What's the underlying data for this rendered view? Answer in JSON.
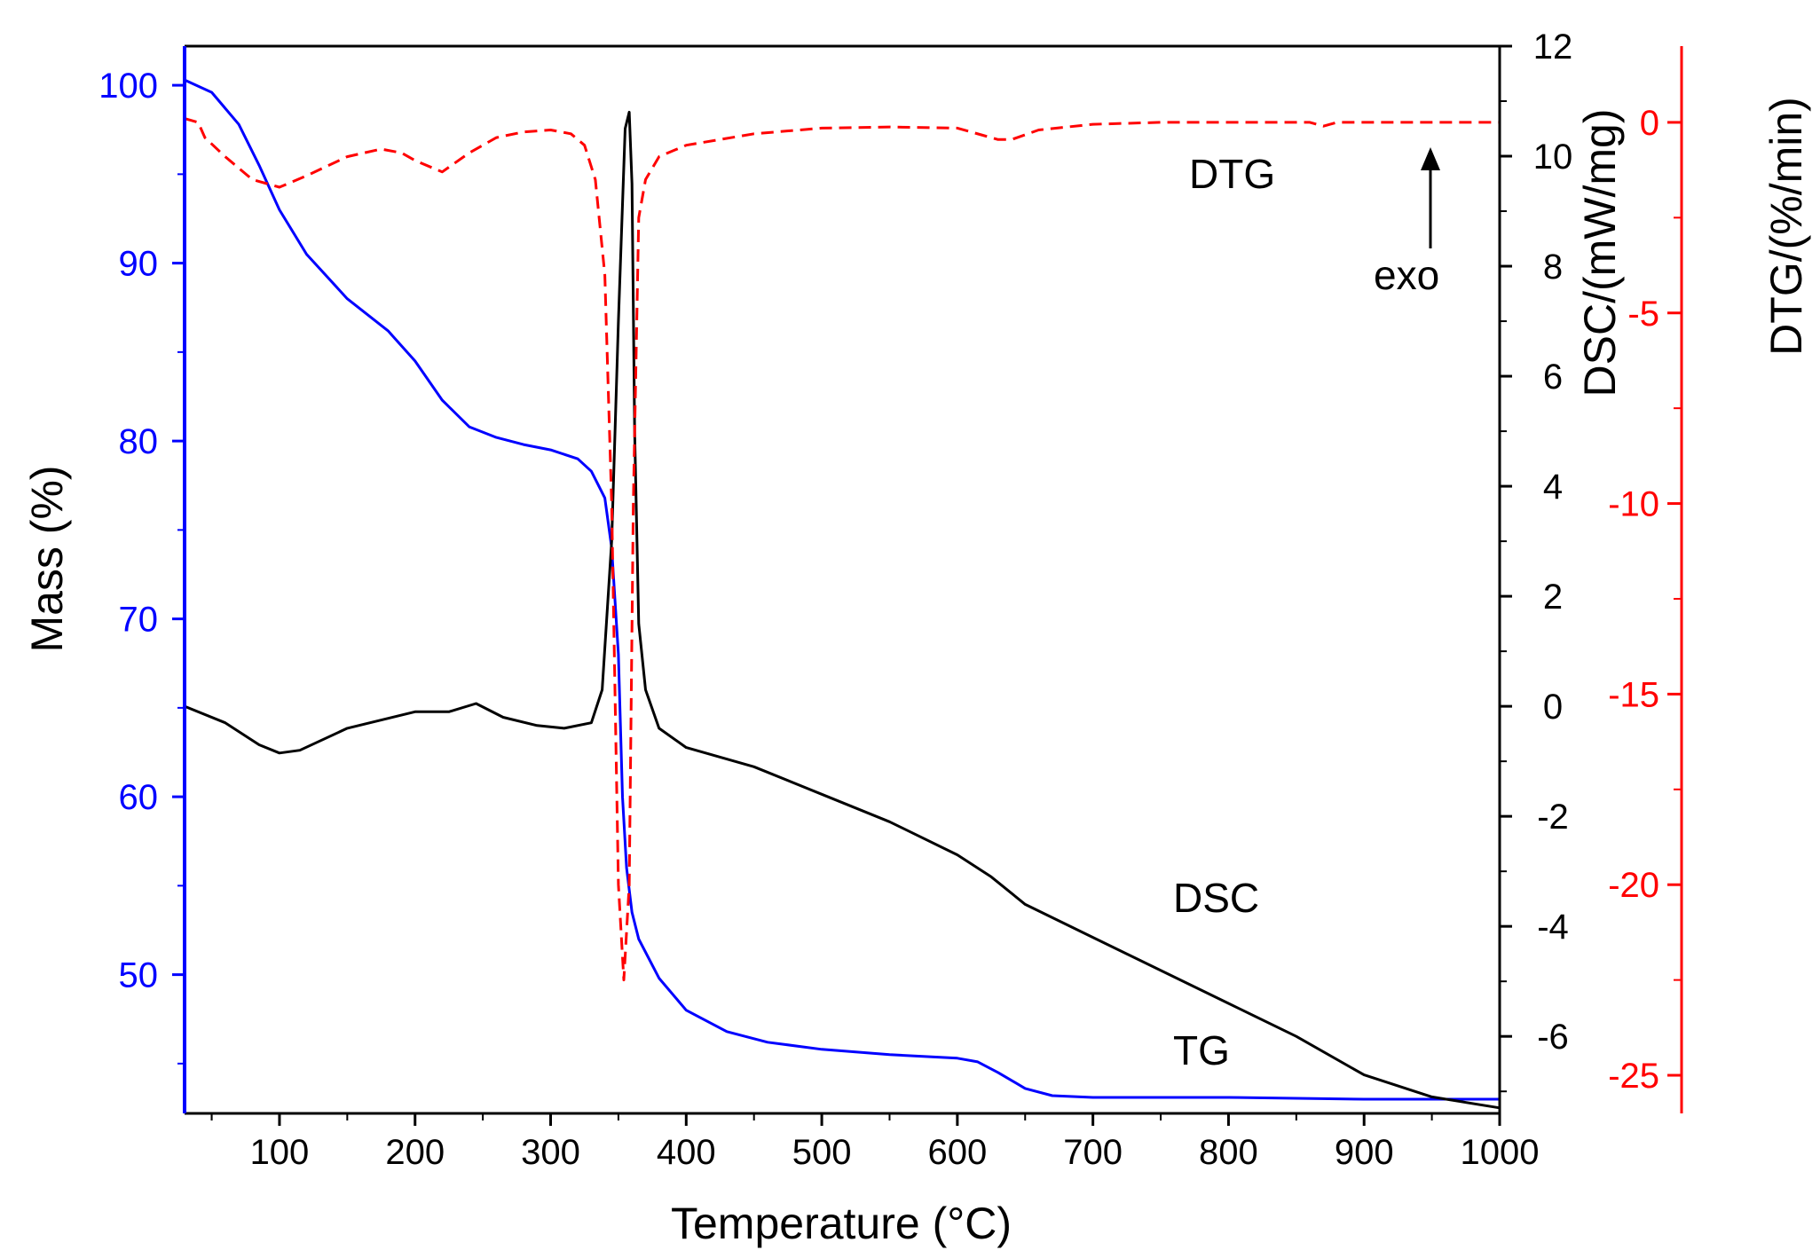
{
  "chart_data": {
    "type": "line",
    "title": "",
    "xlabel": "Temperature (°C)",
    "xlim": [
      30,
      1000
    ],
    "x_ticks": [
      100,
      200,
      300,
      400,
      500,
      600,
      700,
      800,
      900,
      1000
    ],
    "axes": {
      "left": {
        "label": "Mass (%)",
        "ylim": [
          42.2,
          102.2
        ],
        "ticks": [
          50,
          60,
          70,
          80,
          90,
          100
        ],
        "color": "#0000ff"
      },
      "right1": {
        "label": "DSC/(mW/mg)",
        "ylim": [
          -7.4,
          12
        ],
        "ticks": [
          -6,
          -4,
          -2,
          0,
          2,
          4,
          6,
          8,
          10,
          12
        ],
        "color": "#000000"
      },
      "right2": {
        "label": "DTG/(%/min)",
        "ylim": [
          -26,
          2
        ],
        "ticks": [
          -25,
          -20,
          -15,
          -10,
          -5,
          0
        ],
        "color": "#ff0000"
      }
    },
    "series": [
      {
        "name": "TG",
        "axis": "left",
        "color": "#0000ff",
        "style": "solid",
        "x": [
          30,
          50,
          70,
          85,
          100,
          120,
          150,
          180,
          200,
          220,
          240,
          260,
          280,
          300,
          320,
          330,
          340,
          345,
          350,
          353,
          356,
          360,
          365,
          380,
          400,
          430,
          460,
          500,
          550,
          600,
          615,
          630,
          650,
          670,
          700,
          800,
          900,
          1000
        ],
        "y": [
          100.3,
          99.6,
          97.8,
          95.5,
          93.0,
          90.5,
          88.0,
          86.2,
          84.5,
          82.3,
          80.8,
          80.2,
          79.8,
          79.5,
          79.0,
          78.3,
          76.8,
          74.0,
          68.0,
          60.0,
          56.0,
          53.5,
          52.0,
          49.8,
          48.0,
          46.8,
          46.2,
          45.8,
          45.5,
          45.3,
          45.1,
          44.5,
          43.6,
          43.2,
          43.1,
          43.1,
          43.0,
          43.0
        ]
      },
      {
        "name": "DSC",
        "axis": "right1",
        "color": "#000000",
        "style": "solid",
        "x": [
          30,
          60,
          85,
          100,
          115,
          150,
          200,
          225,
          245,
          265,
          290,
          310,
          330,
          338,
          345,
          350,
          355,
          358,
          360,
          362,
          365,
          370,
          380,
          400,
          450,
          500,
          550,
          600,
          625,
          650,
          700,
          800,
          850,
          900,
          950,
          1000
        ],
        "y": [
          0.0,
          -0.3,
          -0.7,
          -0.85,
          -0.8,
          -0.4,
          -0.1,
          -0.1,
          0.05,
          -0.2,
          -0.35,
          -0.4,
          -0.3,
          0.3,
          3.0,
          7.0,
          10.5,
          10.8,
          9.5,
          5.0,
          1.5,
          0.3,
          -0.4,
          -0.75,
          -1.1,
          -1.6,
          -2.1,
          -2.7,
          -3.1,
          -3.6,
          -4.2,
          -5.4,
          -6.0,
          -6.7,
          -7.1,
          -7.3
        ]
      },
      {
        "name": "DTG",
        "axis": "right2",
        "color": "#ff0000",
        "style": "dashed",
        "x": [
          30,
          40,
          45,
          60,
          80,
          100,
          120,
          150,
          175,
          190,
          200,
          220,
          240,
          260,
          280,
          300,
          315,
          325,
          333,
          340,
          345,
          350,
          354,
          358,
          361,
          365,
          370,
          380,
          400,
          450,
          500,
          550,
          600,
          620,
          630,
          640,
          660,
          700,
          750,
          800,
          860,
          870,
          880,
          950,
          1000
        ],
        "y": [
          0.1,
          0.0,
          -0.4,
          -0.9,
          -1.5,
          -1.7,
          -1.4,
          -0.9,
          -0.7,
          -0.8,
          -1.0,
          -1.3,
          -0.8,
          -0.4,
          -0.25,
          -0.2,
          -0.3,
          -0.6,
          -1.5,
          -4.0,
          -10.0,
          -20.0,
          -22.5,
          -20.0,
          -10.0,
          -2.5,
          -1.5,
          -0.9,
          -0.6,
          -0.3,
          -0.15,
          -0.12,
          -0.15,
          -0.35,
          -0.45,
          -0.45,
          -0.2,
          -0.05,
          0.0,
          0.0,
          0.0,
          -0.1,
          0.0,
          0.0,
          0.0
        ]
      }
    ],
    "annotations": {
      "dtg_label": "DTG",
      "dsc_label": "DSC",
      "tg_label": "TG",
      "exo_label": "exo"
    }
  }
}
